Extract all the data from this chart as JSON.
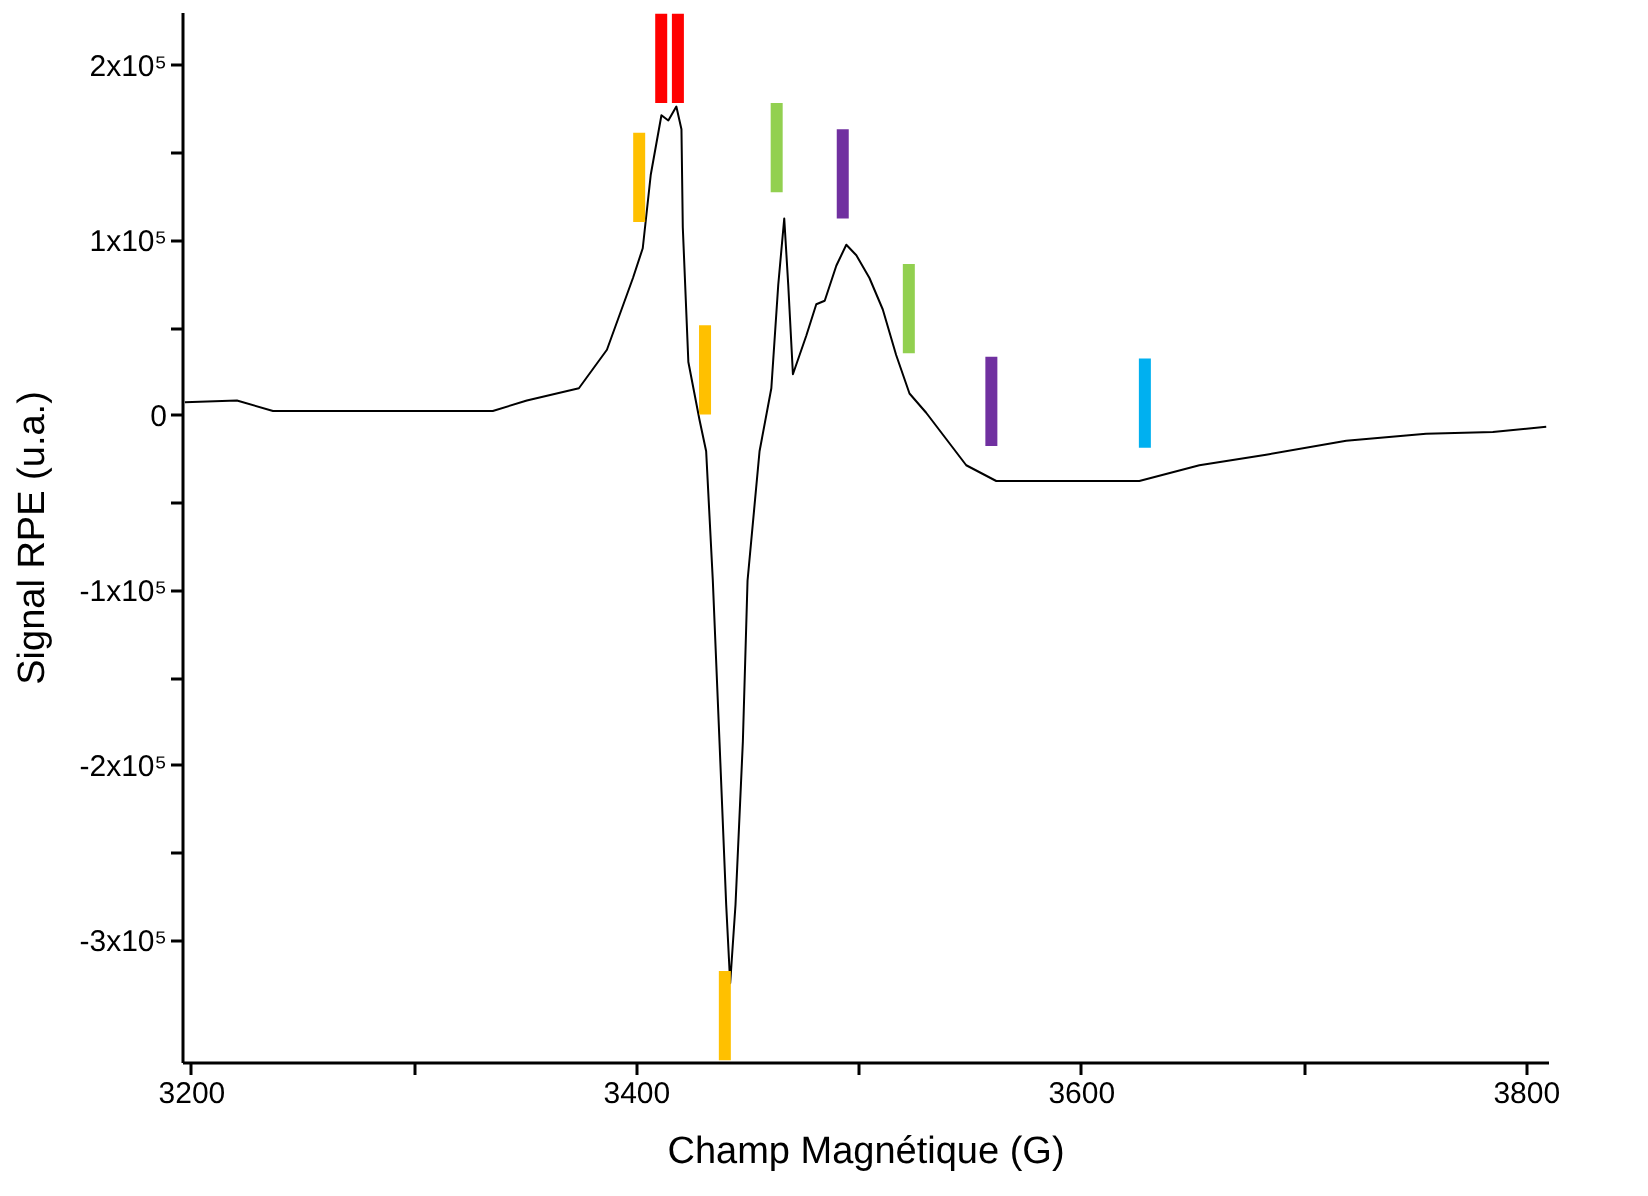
{
  "chart_data": {
    "type": "line",
    "xlabel": "Champ Magnétique (G)",
    "ylabel": "Signal RPE (u.a.)",
    "xlim": [
      3196,
      3810
    ],
    "ylim": [
      -370000,
      230000
    ],
    "xticks": [
      3200,
      {
        "value": 3300,
        "label": null
      },
      3400,
      {
        "value": 3500,
        "label": null
      },
      3600,
      {
        "value": 3700,
        "label": null
      },
      3800
    ],
    "yticks": [
      {
        "value": -300000,
        "label": "-3x10⁵"
      },
      {
        "value": -250000,
        "label": null
      },
      {
        "value": -200000,
        "label": "-2x10⁵"
      },
      {
        "value": -150000,
        "label": null
      },
      {
        "value": -100000,
        "label": "-1x10⁵"
      },
      {
        "value": -50000,
        "label": null
      },
      0,
      {
        "value": 50000,
        "label": null
      },
      {
        "value": 100000,
        "label": "1x10⁵"
      },
      {
        "value": 150000,
        "label": null
      },
      {
        "value": 200000,
        "label": "2x10⁵"
      }
    ],
    "series": [
      {
        "color": "#000000",
        "x": [
          3197.3,
          3220.7,
          3236.9,
          3335.7,
          3351,
          3374.4,
          3387,
          3398.7,
          3403.1,
          3406.7,
          3411.5,
          3414.6,
          3418.2,
          3420.5,
          3421.1,
          3423.6,
          3428.6,
          3431.6,
          3434.6,
          3437.6,
          3440.6,
          3442.4,
          3444.8,
          3448.1,
          3450.2,
          3455.6,
          3460.9,
          3464,
          3466.7,
          3468.5,
          3470.6,
          3476.6,
          3481.1,
          3484.9,
          3490.1,
          3494.6,
          3499.1,
          3505,
          3511,
          3517,
          3523,
          3530.5,
          3539.5,
          3548.5,
          3562,
          3590.4,
          3626.3,
          3653.3,
          3683.3,
          3719.3,
          3755.2,
          3785.2,
          3809.2
        ],
        "values": [
          7000,
          8000,
          2000,
          2000,
          8000,
          15000,
          37000,
          78000,
          95000,
          137000,
          171000,
          168000,
          176000,
          163000,
          107000,
          30000,
          -3000,
          -21000,
          -95000,
          -187000,
          -280000,
          -325000,
          -280000,
          -187000,
          -95000,
          -21000,
          15000,
          74000,
          112000,
          74000,
          23000,
          45000,
          63000,
          65000,
          85000,
          97000,
          91000,
          78000,
          60000,
          34000,
          12000,
          1000,
          -14000,
          -29000,
          -38000,
          -38000,
          -38000,
          -29000,
          -23000,
          -15000,
          -11000,
          -10000,
          -7000
        ]
      },
      {
        "type": "bar",
        "color": "#ffc000",
        "x": [
          3401.5,
          3431.1,
          3440
        ],
        "base": [
          110000,
          0,
          -369000
        ],
        "values": [
          51000,
          51000,
          51000
        ]
      },
      {
        "type": "bar",
        "color": "#ff0000",
        "x": [
          3411.4,
          3418.9
        ],
        "base": [
          178000,
          178000
        ],
        "values": [
          51000,
          51000
        ]
      },
      {
        "type": "bar",
        "color": "#92d050",
        "x": [
          3463.3,
          3522.7
        ],
        "base": [
          127000,
          35000
        ],
        "values": [
          51000,
          51000
        ]
      },
      {
        "type": "bar",
        "color": "#7030a0",
        "x": [
          3493,
          3559.8
        ],
        "base": [
          112000,
          -18000
        ],
        "values": [
          51000,
          51000
        ]
      },
      {
        "type": "bar",
        "color": "#00b0f0",
        "x": [
          3628.8
        ],
        "base": [
          -19000
        ],
        "values": [
          51000
        ]
      }
    ]
  }
}
